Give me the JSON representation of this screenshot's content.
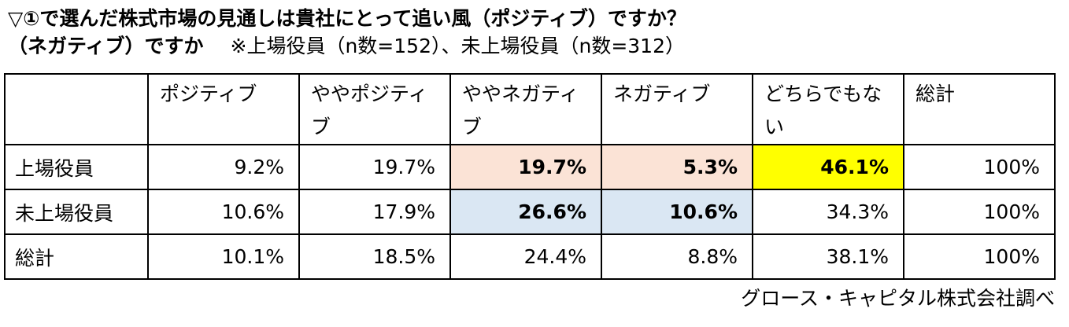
{
  "title": {
    "line1": "▽①で選んだ株式市場の見通しは貴社にとって追い風（ポジティブ）ですか？",
    "line2_bold": "（ネガティブ）ですか",
    "line2_note": "※上場役員（n数=152）、未上場役員（n数=312）"
  },
  "table": {
    "columns": [
      "",
      "ポジティブ",
      "ややポジティブ",
      "ややネガティブ",
      "ネガティブ",
      "どちらでもない",
      "総計"
    ],
    "rows": [
      {
        "label": "上場役員",
        "values": [
          "9.2%",
          "19.7%",
          "19.7%",
          "5.3%",
          "46.1%",
          "100%"
        ]
      },
      {
        "label": "未上場役員",
        "values": [
          "10.6%",
          "17.9%",
          "26.6%",
          "10.6%",
          "34.3%",
          "100%"
        ]
      },
      {
        "label": "総計",
        "values": [
          "10.1%",
          "18.5%",
          "24.4%",
          "8.8%",
          "38.1%",
          "100%"
        ]
      }
    ]
  },
  "highlights": {
    "listed_negative_color": "#fbe3d6",
    "unlisted_negative_color": "#dae7f3",
    "top_answer_color": "#ffff00"
  },
  "source": "グロース・キャピタル株式会社調べ"
}
